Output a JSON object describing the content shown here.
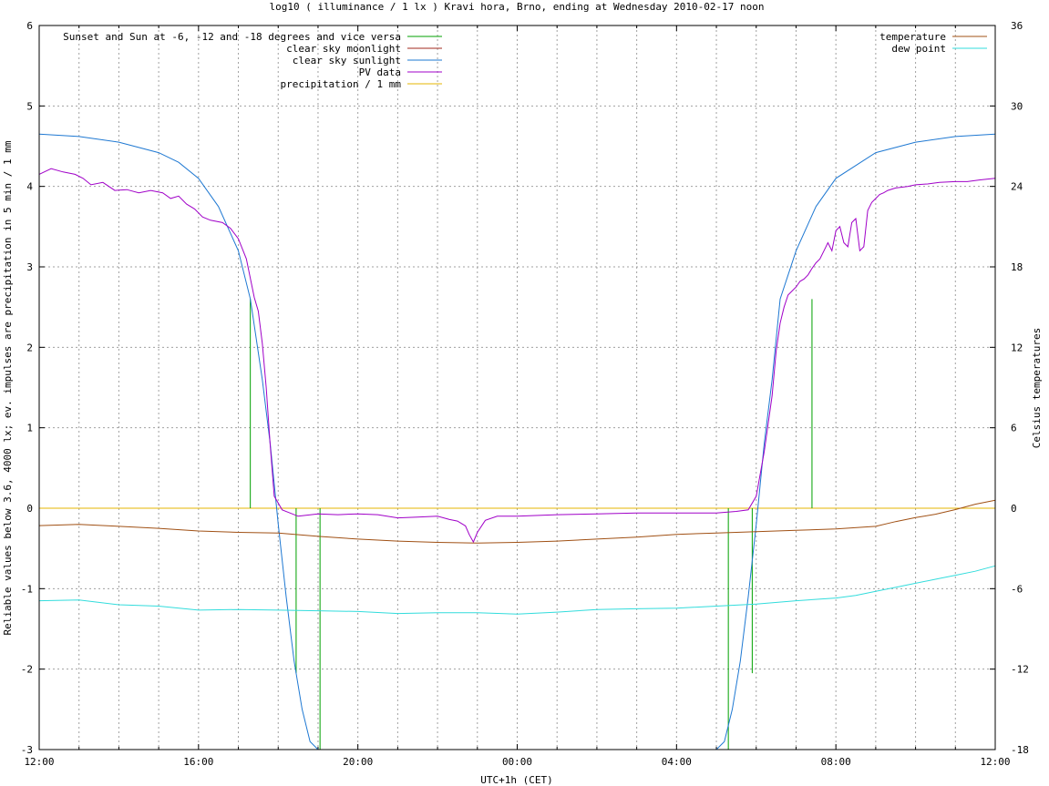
{
  "chart_data": {
    "type": "line",
    "title": "log10 ( illuminance / 1 lx ) Kravi hora, Brno, ending at Wednesday 2010-02-17 noon",
    "xlabel": "UTC+1h (CET)",
    "ylabel": "Reliable values below 3.6, 4000 lx; ev. impulses are precipitation in 5 min / 1 mm",
    "y2label": "Celsius temperatures",
    "xlim": [
      12,
      36
    ],
    "ylim": [
      -3,
      6
    ],
    "y2lim": [
      -18,
      36
    ],
    "grid": true,
    "x_ticks": [
      {
        "v": 12,
        "label": "12:00"
      },
      {
        "v": 16,
        "label": "16:00"
      },
      {
        "v": 20,
        "label": "20:00"
      },
      {
        "v": 24,
        "label": "00:00"
      },
      {
        "v": 28,
        "label": "04:00"
      },
      {
        "v": 32,
        "label": "08:00"
      },
      {
        "v": 36,
        "label": "12:00"
      }
    ],
    "y_ticks": [
      {
        "v": -3,
        "label": "-3"
      },
      {
        "v": -2,
        "label": "-2"
      },
      {
        "v": -1,
        "label": "-1"
      },
      {
        "v": 0,
        "label": "0"
      },
      {
        "v": 1,
        "label": "1"
      },
      {
        "v": 2,
        "label": "2"
      },
      {
        "v": 3,
        "label": "3"
      },
      {
        "v": 4,
        "label": "4"
      },
      {
        "v": 5,
        "label": "5"
      },
      {
        "v": 6,
        "label": "6"
      }
    ],
    "y2_ticks": [
      {
        "v": -18,
        "label": "-18"
      },
      {
        "v": -12,
        "label": "-12"
      },
      {
        "v": -6,
        "label": "-6"
      },
      {
        "v": 0,
        "label": "0"
      },
      {
        "v": 6,
        "label": "6"
      },
      {
        "v": 12,
        "label": "12"
      },
      {
        "v": 18,
        "label": "18"
      },
      {
        "v": 24,
        "label": "24"
      },
      {
        "v": 30,
        "label": "30"
      },
      {
        "v": 36,
        "label": "36"
      }
    ],
    "legend_left": [
      {
        "name": "Sunset and Sun at -6, -12 and -18 degrees and vice versa",
        "color": "#00a000"
      },
      {
        "name": "clear sky moonlight",
        "color": "#a0281e"
      },
      {
        "name": "clear sky sunlight",
        "color": "#1e78d2"
      },
      {
        "name": "PV data",
        "color": "#a000c8"
      },
      {
        "name": "precipitation / 1 mm",
        "color": "#e6b400"
      }
    ],
    "legend_right": [
      {
        "name": "temperature",
        "color": "#a05014"
      },
      {
        "name": "dew point",
        "color": "#32dcdc"
      }
    ],
    "series": [
      {
        "name": "clear sky sunlight",
        "axis": "y",
        "color": "#1e78d2",
        "x": [
          12.0,
          13.0,
          14.0,
          15.0,
          15.5,
          16.0,
          16.5,
          17.0,
          17.3,
          17.6,
          17.8,
          18.0,
          18.2,
          18.4,
          18.6,
          18.8,
          19.0,
          29.0,
          29.2,
          29.4,
          29.6,
          29.8,
          30.0,
          30.2,
          30.4,
          30.6,
          31.0,
          31.5,
          32.0,
          33.0,
          34.0,
          35.0,
          36.0
        ],
        "y": [
          4.65,
          4.62,
          4.55,
          4.42,
          4.3,
          4.1,
          3.75,
          3.2,
          2.6,
          1.6,
          0.8,
          -0.2,
          -1.1,
          -1.9,
          -2.5,
          -2.9,
          -3.05,
          -3.05,
          -2.9,
          -2.5,
          -1.9,
          -1.1,
          -0.2,
          0.8,
          1.6,
          2.6,
          3.2,
          3.75,
          4.1,
          4.42,
          4.55,
          4.62,
          4.65
        ]
      },
      {
        "name": "PV data",
        "axis": "y",
        "color": "#a000c8",
        "x": [
          12.0,
          12.3,
          12.6,
          12.9,
          13.1,
          13.3,
          13.6,
          13.9,
          14.2,
          14.5,
          14.8,
          15.1,
          15.3,
          15.5,
          15.7,
          15.9,
          16.1,
          16.3,
          16.6,
          16.8,
          17.0,
          17.2,
          17.4,
          17.5,
          17.6,
          17.7,
          17.8,
          17.9,
          18.1,
          18.3,
          18.5,
          19.0,
          19.5,
          20.0,
          20.5,
          21.0,
          21.5,
          22.0,
          22.3,
          22.5,
          22.7,
          22.8,
          22.9,
          23.0,
          23.2,
          23.5,
          24.0,
          25.0,
          26.0,
          27.0,
          28.0,
          29.0,
          29.5,
          29.8,
          30.0,
          30.2,
          30.4,
          30.5,
          30.6,
          30.7,
          30.8,
          30.9,
          31.0,
          31.1,
          31.2,
          31.3,
          31.4,
          31.5,
          31.6,
          31.7,
          31.8,
          31.9,
          32.0,
          32.1,
          32.2,
          32.3,
          32.4,
          32.5,
          32.6,
          32.7,
          32.8,
          32.9,
          33.0,
          33.1,
          33.2,
          33.3,
          33.5,
          33.8,
          34.0,
          34.3,
          34.6,
          35.0,
          35.3,
          35.6,
          36.0
        ],
        "y": [
          4.15,
          4.22,
          4.18,
          4.15,
          4.1,
          4.02,
          4.05,
          3.95,
          3.96,
          3.92,
          3.95,
          3.92,
          3.85,
          3.88,
          3.78,
          3.72,
          3.62,
          3.58,
          3.55,
          3.48,
          3.35,
          3.1,
          2.62,
          2.45,
          2.05,
          1.5,
          0.78,
          0.15,
          -0.02,
          -0.06,
          -0.1,
          -0.07,
          -0.08,
          -0.07,
          -0.08,
          -0.12,
          -0.11,
          -0.1,
          -0.14,
          -0.16,
          -0.22,
          -0.33,
          -0.42,
          -0.3,
          -0.15,
          -0.1,
          -0.1,
          -0.08,
          -0.07,
          -0.06,
          -0.06,
          -0.06,
          -0.04,
          -0.02,
          0.15,
          0.7,
          1.4,
          1.95,
          2.3,
          2.5,
          2.65,
          2.7,
          2.75,
          2.82,
          2.85,
          2.9,
          2.98,
          3.05,
          3.1,
          3.2,
          3.3,
          3.2,
          3.45,
          3.5,
          3.3,
          3.25,
          3.55,
          3.6,
          3.2,
          3.25,
          3.7,
          3.8,
          3.85,
          3.9,
          3.92,
          3.95,
          3.98,
          4.0,
          4.02,
          4.03,
          4.05,
          4.06,
          4.06,
          4.08,
          4.1
        ]
      },
      {
        "name": "temperature",
        "axis": "y2",
        "color": "#a05014",
        "x": [
          12.0,
          13.0,
          14.0,
          15.0,
          16.0,
          17.0,
          18.0,
          19.0,
          20.0,
          21.0,
          22.0,
          23.0,
          24.0,
          25.0,
          26.0,
          27.0,
          28.0,
          29.0,
          30.0,
          31.0,
          32.0,
          33.0,
          33.5,
          34.0,
          34.5,
          35.0,
          35.5,
          36.0
        ],
        "y": [
          -1.3,
          -1.2,
          -1.35,
          -1.5,
          -1.7,
          -1.8,
          -1.85,
          -2.1,
          -2.3,
          -2.45,
          -2.55,
          -2.6,
          -2.55,
          -2.45,
          -2.3,
          -2.15,
          -1.95,
          -1.85,
          -1.75,
          -1.65,
          -1.55,
          -1.35,
          -1.0,
          -0.7,
          -0.45,
          -0.1,
          0.3,
          0.6
        ]
      },
      {
        "name": "dew point",
        "axis": "y2",
        "color": "#32dcdc",
        "x": [
          12.0,
          13.0,
          14.0,
          15.0,
          16.0,
          17.0,
          18.0,
          19.0,
          20.0,
          21.0,
          22.0,
          23.0,
          24.0,
          25.0,
          26.0,
          27.0,
          28.0,
          29.0,
          30.0,
          31.0,
          32.0,
          32.5,
          33.0,
          33.5,
          34.0,
          34.5,
          35.0,
          35.5,
          36.0
        ],
        "y": [
          -6.9,
          -6.85,
          -7.2,
          -7.3,
          -7.6,
          -7.55,
          -7.6,
          -7.65,
          -7.7,
          -7.85,
          -7.8,
          -7.8,
          -7.9,
          -7.75,
          -7.55,
          -7.5,
          -7.45,
          -7.3,
          -7.15,
          -6.9,
          -6.7,
          -6.5,
          -6.2,
          -5.9,
          -5.6,
          -5.3,
          -5.0,
          -4.7,
          -4.3
        ]
      }
    ],
    "sun_marks": {
      "name": "Sunset and Sun at -6, -12 and -18 degrees and vice versa",
      "axis": "y",
      "color": "#00a000",
      "x": [
        17.3,
        18.45,
        19.05,
        29.3,
        29.9,
        31.4
      ],
      "y": [
        2.6,
        -2.05,
        -3.0,
        -3.0,
        -2.05,
        2.6
      ]
    },
    "precipitation": {
      "name": "precipitation / 1 mm",
      "axis": "y",
      "color": "#e6b400",
      "value": 0
    }
  }
}
